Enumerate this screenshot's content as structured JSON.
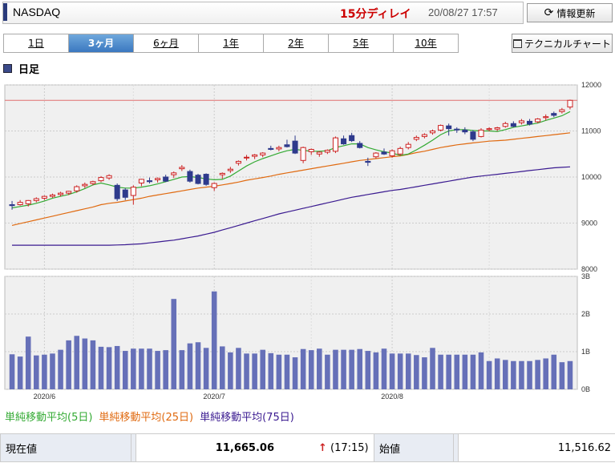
{
  "header": {
    "title": "NASDAQ",
    "delay": "15分ディレイ",
    "timestamp": "20/08/27 17:57",
    "refresh_label": "情報更新"
  },
  "tabs": [
    "1日",
    "3ヶ月",
    "6ヶ月",
    "1年",
    "2年",
    "5年",
    "10年"
  ],
  "active_tab": "3ヶ月",
  "tech_label": "テクニカルチャート",
  "section_label": "日足",
  "colors": {
    "up": "#cc2222",
    "down": "#2e3a8c",
    "ma5": "#33aa33",
    "ma25": "#e06a10",
    "ma75": "#3a1a90",
    "volume": "#6670b8",
    "ref_line": "#e07070"
  },
  "legend": {
    "ma5": "単純移動平均(5日)",
    "ma25": "単純移動平均(25日)",
    "ma75": "単純移動平均(75日)"
  },
  "table": {
    "current_label": "現在値",
    "current_value": "11,665.06",
    "current_time": "(17:15)",
    "open_label": "始値",
    "open_value": "11,516.62"
  },
  "chart_data": {
    "type": "candlestick",
    "price_axis": {
      "ylim": [
        8000,
        12000
      ],
      "ticks": [
        "12000",
        "11000",
        "10000",
        "9000",
        "8000"
      ]
    },
    "volume_axis": {
      "ylim": [
        0,
        3
      ],
      "ticks": [
        "3B",
        "2B",
        "1B",
        "0B"
      ]
    },
    "x_tick_labels": [
      {
        "label": "2020/6",
        "index": 4
      },
      {
        "label": "2020/7",
        "index": 25
      },
      {
        "label": "2020/8",
        "index": 47
      }
    ],
    "reference_line": 11665,
    "candles": [
      [
        9400,
        9480,
        9290,
        9380
      ],
      [
        9400,
        9500,
        9380,
        9450
      ],
      [
        9420,
        9500,
        9360,
        9490
      ],
      [
        9490,
        9560,
        9450,
        9530
      ],
      [
        9540,
        9600,
        9500,
        9580
      ],
      [
        9580,
        9640,
        9550,
        9610
      ],
      [
        9620,
        9680,
        9580,
        9650
      ],
      [
        9650,
        9700,
        9610,
        9690
      ],
      [
        9700,
        9820,
        9660,
        9790
      ],
      [
        9810,
        9880,
        9760,
        9840
      ],
      [
        9860,
        9920,
        9820,
        9900
      ],
      [
        9920,
        10020,
        9890,
        9990
      ],
      [
        9980,
        10060,
        9940,
        10030
      ],
      [
        9820,
        9860,
        9480,
        9530
      ],
      [
        9720,
        9760,
        9500,
        9560
      ],
      [
        9600,
        9820,
        9400,
        9780
      ],
      [
        9870,
        9960,
        9800,
        9950
      ],
      [
        9920,
        9990,
        9860,
        9900
      ],
      [
        9940,
        9990,
        9880,
        9970
      ],
      [
        10000,
        10050,
        9890,
        9910
      ],
      [
        10050,
        10120,
        9980,
        10090
      ],
      [
        10180,
        10260,
        10130,
        10210
      ],
      [
        10120,
        10160,
        9880,
        9910
      ],
      [
        10040,
        10070,
        9840,
        9860
      ],
      [
        10060,
        10080,
        9810,
        9840
      ],
      [
        9770,
        9880,
        9700,
        9860
      ],
      [
        10050,
        10100,
        9960,
        10080
      ],
      [
        10140,
        10220,
        10090,
        10170
      ],
      [
        10300,
        10360,
        10250,
        10340
      ],
      [
        10420,
        10480,
        10360,
        10430
      ],
      [
        10450,
        10500,
        10390,
        10480
      ],
      [
        10480,
        10540,
        10430,
        10520
      ],
      [
        10620,
        10680,
        10580,
        10600
      ],
      [
        10610,
        10680,
        10560,
        10640
      ],
      [
        10700,
        10810,
        10640,
        10660
      ],
      [
        10780,
        10900,
        10500,
        10520
      ],
      [
        10360,
        10660,
        10300,
        10640
      ],
      [
        10550,
        10620,
        10480,
        10600
      ],
      [
        10500,
        10560,
        10440,
        10540
      ],
      [
        10540,
        10600,
        10500,
        10580
      ],
      [
        10560,
        10880,
        10520,
        10850
      ],
      [
        10830,
        10900,
        10700,
        10720
      ],
      [
        10900,
        10960,
        10760,
        10790
      ],
      [
        10730,
        10780,
        10620,
        10640
      ],
      [
        10340,
        10420,
        10240,
        10320
      ],
      [
        10440,
        10540,
        10400,
        10520
      ],
      [
        10540,
        10620,
        10480,
        10500
      ],
      [
        10460,
        10600,
        10420,
        10570
      ],
      [
        10500,
        10660,
        10460,
        10620
      ],
      [
        10640,
        10760,
        10600,
        10710
      ],
      [
        10820,
        10900,
        10780,
        10860
      ],
      [
        10880,
        10950,
        10840,
        10920
      ],
      [
        10960,
        11030,
        10920,
        11000
      ],
      [
        11020,
        11140,
        10990,
        11120
      ],
      [
        11110,
        11160,
        10900,
        11050
      ],
      [
        11040,
        11080,
        10960,
        11030
      ],
      [
        11020,
        11080,
        10930,
        10980
      ],
      [
        10980,
        11020,
        10780,
        10820
      ],
      [
        10880,
        11060,
        10860,
        11020
      ],
      [
        11030,
        11080,
        10990,
        11050
      ],
      [
        11040,
        11090,
        11000,
        11070
      ],
      [
        11100,
        11200,
        11070,
        11160
      ],
      [
        11160,
        11210,
        11080,
        11100
      ],
      [
        11180,
        11260,
        11140,
        11220
      ],
      [
        11210,
        11260,
        11120,
        11150
      ],
      [
        11200,
        11280,
        11170,
        11260
      ],
      [
        11290,
        11360,
        11230,
        11310
      ],
      [
        11380,
        11420,
        11300,
        11340
      ],
      [
        11420,
        11500,
        11380,
        11460
      ],
      [
        11520,
        11680,
        11470,
        11665
      ]
    ],
    "ma5": [
      9330,
      9360,
      9390,
      9430,
      9480,
      9540,
      9580,
      9620,
      9680,
      9750,
      9830,
      9870,
      9830,
      9780,
      9760,
      9760,
      9780,
      9810,
      9850,
      9900,
      9950,
      10000,
      10010,
      9990,
      9960,
      9940,
      9950,
      10020,
      10130,
      10240,
      10330,
      10400,
      10460,
      10520,
      10570,
      10600,
      10580,
      10560,
      10560,
      10570,
      10640,
      10680,
      10720,
      10720,
      10640,
      10590,
      10550,
      10520,
      10470,
      10500,
      10590,
      10690,
      10800,
      10920,
      11000,
      11030,
      11030,
      11010,
      11000,
      11000,
      10990,
      11030,
      11080,
      11110,
      11140,
      11170,
      11230,
      11280,
      11330,
      11420
    ],
    "ma25": [
      8950,
      8990,
      9030,
      9070,
      9110,
      9150,
      9190,
      9230,
      9270,
      9310,
      9350,
      9400,
      9430,
      9450,
      9480,
      9510,
      9540,
      9580,
      9610,
      9640,
      9670,
      9700,
      9730,
      9760,
      9780,
      9800,
      9830,
      9860,
      9890,
      9930,
      9960,
      9990,
      10020,
      10060,
      10090,
      10120,
      10150,
      10180,
      10210,
      10240,
      10270,
      10300,
      10330,
      10360,
      10380,
      10400,
      10420,
      10440,
      10460,
      10490,
      10530,
      10560,
      10600,
      10640,
      10670,
      10700,
      10720,
      10740,
      10760,
      10780,
      10790,
      10800,
      10820,
      10840,
      10860,
      10880,
      10900,
      10920,
      10940,
      10960
    ],
    "ma75": [
      8520,
      8520,
      8520,
      8520,
      8520,
      8520,
      8520,
      8520,
      8520,
      8520,
      8520,
      8520,
      8520,
      8525,
      8530,
      8540,
      8550,
      8570,
      8590,
      8610,
      8630,
      8660,
      8690,
      8720,
      8760,
      8800,
      8850,
      8900,
      8950,
      9000,
      9050,
      9100,
      9150,
      9200,
      9240,
      9280,
      9320,
      9360,
      9400,
      9440,
      9480,
      9520,
      9560,
      9590,
      9620,
      9650,
      9680,
      9710,
      9730,
      9760,
      9790,
      9820,
      9850,
      9880,
      9910,
      9940,
      9970,
      10000,
      10020,
      10040,
      10060,
      10080,
      10100,
      10120,
      10140,
      10160,
      10180,
      10200,
      10210,
      10220
    ],
    "volume": [
      0.93,
      0.87,
      1.4,
      0.9,
      0.92,
      0.95,
      1.05,
      1.3,
      1.42,
      1.35,
      1.3,
      1.13,
      1.12,
      1.15,
      1.02,
      1.08,
      1.08,
      1.08,
      1.02,
      1.04,
      2.4,
      1.04,
      1.22,
      1.25,
      1.1,
      2.6,
      1.14,
      0.98,
      1.1,
      0.95,
      0.95,
      1.05,
      0.96,
      0.92,
      0.92,
      0.85,
      1.07,
      1.04,
      1.08,
      0.92,
      1.05,
      1.05,
      1.05,
      1.07,
      1.02,
      0.98,
      1.08,
      0.95,
      0.95,
      0.95,
      0.91,
      0.85,
      1.1,
      0.92,
      0.92,
      0.92,
      0.92,
      0.92,
      0.98,
      0.75,
      0.82,
      0.78,
      0.75,
      0.75,
      0.75,
      0.78,
      0.82,
      0.92,
      0.72,
      0.75
    ]
  }
}
